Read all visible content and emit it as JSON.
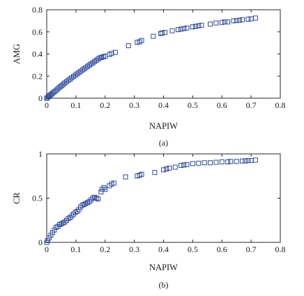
{
  "chart_data": [
    {
      "type": "scatter",
      "panel_id": "a",
      "caption": "(a)",
      "xlabel": "NAPIW",
      "ylabel": "AMG",
      "xlim": [
        0,
        0.8
      ],
      "ylim": [
        0,
        0.8
      ],
      "xticks": [
        0,
        0.1,
        0.2,
        0.3,
        0.4,
        0.5,
        0.6,
        0.7,
        0.8
      ],
      "yticks": [
        0,
        0.2,
        0.4,
        0.6,
        0.8
      ],
      "xtick_labels": [
        "0",
        "0.1",
        "0.2",
        "0.3",
        "0.4",
        "0.5",
        "0.6",
        "0.7",
        "0.8"
      ],
      "ytick_labels": [
        "0",
        "0.2",
        "0.4",
        "0.6",
        "0.8"
      ],
      "marker": "square",
      "color": "#2c4a9e",
      "grid": false,
      "series": [
        {
          "x": [
            0.0,
            0.003,
            0.006,
            0.01,
            0.014,
            0.018,
            0.022,
            0.027,
            0.032,
            0.037,
            0.042,
            0.047,
            0.052,
            0.057,
            0.062,
            0.068,
            0.074,
            0.08,
            0.086,
            0.092,
            0.098,
            0.104,
            0.11,
            0.116,
            0.122,
            0.128,
            0.134,
            0.14,
            0.146,
            0.152,
            0.158,
            0.164,
            0.17,
            0.176,
            0.182,
            0.188,
            0.194,
            0.2,
            0.215,
            0.222,
            0.235,
            0.28,
            0.31,
            0.318,
            0.325,
            0.365,
            0.39,
            0.395,
            0.405,
            0.43,
            0.45,
            0.46,
            0.47,
            0.48,
            0.5,
            0.51,
            0.52,
            0.53,
            0.56,
            0.58,
            0.6,
            0.61,
            0.62,
            0.64,
            0.65,
            0.66,
            0.67,
            0.69,
            0.7,
            0.715
          ],
          "y": [
            0.0,
            0.005,
            0.015,
            0.025,
            0.032,
            0.04,
            0.05,
            0.06,
            0.07,
            0.082,
            0.095,
            0.105,
            0.115,
            0.127,
            0.138,
            0.15,
            0.162,
            0.173,
            0.185,
            0.197,
            0.208,
            0.22,
            0.23,
            0.243,
            0.255,
            0.265,
            0.276,
            0.288,
            0.299,
            0.31,
            0.32,
            0.332,
            0.343,
            0.354,
            0.365,
            0.37,
            0.375,
            0.38,
            0.395,
            0.405,
            0.415,
            0.475,
            0.505,
            0.51,
            0.522,
            0.56,
            0.585,
            0.59,
            0.595,
            0.61,
            0.62,
            0.625,
            0.63,
            0.635,
            0.645,
            0.65,
            0.655,
            0.66,
            0.67,
            0.68,
            0.685,
            0.69,
            0.69,
            0.7,
            0.702,
            0.705,
            0.71,
            0.715,
            0.718,
            0.725
          ]
        }
      ]
    },
    {
      "type": "scatter",
      "panel_id": "b",
      "caption": "(b)",
      "xlabel": "NAPIW",
      "ylabel": "CR",
      "xlim": [
        0,
        0.8
      ],
      "ylim": [
        0,
        1
      ],
      "xticks": [
        0,
        0.1,
        0.2,
        0.3,
        0.4,
        0.5,
        0.6,
        0.7,
        0.8
      ],
      "yticks": [
        0,
        0.5,
        1
      ],
      "xtick_labels": [
        "0",
        "0.1",
        "0.2",
        "0.3",
        "0.4",
        "0.5",
        "0.6",
        "0.7",
        "0.8"
      ],
      "ytick_labels": [
        "0",
        "0.5",
        "1"
      ],
      "marker": "square",
      "color": "#2c4a9e",
      "grid": false,
      "series": [
        {
          "x": [
            0.0,
            0.003,
            0.008,
            0.014,
            0.02,
            0.026,
            0.032,
            0.038,
            0.044,
            0.05,
            0.056,
            0.062,
            0.068,
            0.074,
            0.08,
            0.086,
            0.092,
            0.098,
            0.104,
            0.11,
            0.116,
            0.122,
            0.128,
            0.134,
            0.14,
            0.146,
            0.152,
            0.158,
            0.164,
            0.17,
            0.176,
            0.186,
            0.19,
            0.196,
            0.2,
            0.215,
            0.222,
            0.23,
            0.27,
            0.31,
            0.318,
            0.325,
            0.37,
            0.4,
            0.41,
            0.42,
            0.44,
            0.46,
            0.47,
            0.48,
            0.5,
            0.52,
            0.54,
            0.56,
            0.58,
            0.6,
            0.62,
            0.63,
            0.65,
            0.67,
            0.68,
            0.69,
            0.7,
            0.715
          ],
          "y": [
            0.0,
            0.02,
            0.05,
            0.08,
            0.11,
            0.14,
            0.17,
            0.18,
            0.2,
            0.21,
            0.22,
            0.23,
            0.25,
            0.27,
            0.28,
            0.3,
            0.32,
            0.34,
            0.35,
            0.37,
            0.4,
            0.42,
            0.43,
            0.44,
            0.45,
            0.46,
            0.48,
            0.5,
            0.51,
            0.5,
            0.49,
            0.57,
            0.6,
            0.62,
            0.6,
            0.64,
            0.66,
            0.67,
            0.74,
            0.75,
            0.76,
            0.77,
            0.79,
            0.82,
            0.83,
            0.84,
            0.85,
            0.87,
            0.875,
            0.88,
            0.89,
            0.895,
            0.9,
            0.9,
            0.905,
            0.91,
            0.91,
            0.915,
            0.915,
            0.92,
            0.92,
            0.925,
            0.925,
            0.93
          ]
        }
      ]
    }
  ]
}
